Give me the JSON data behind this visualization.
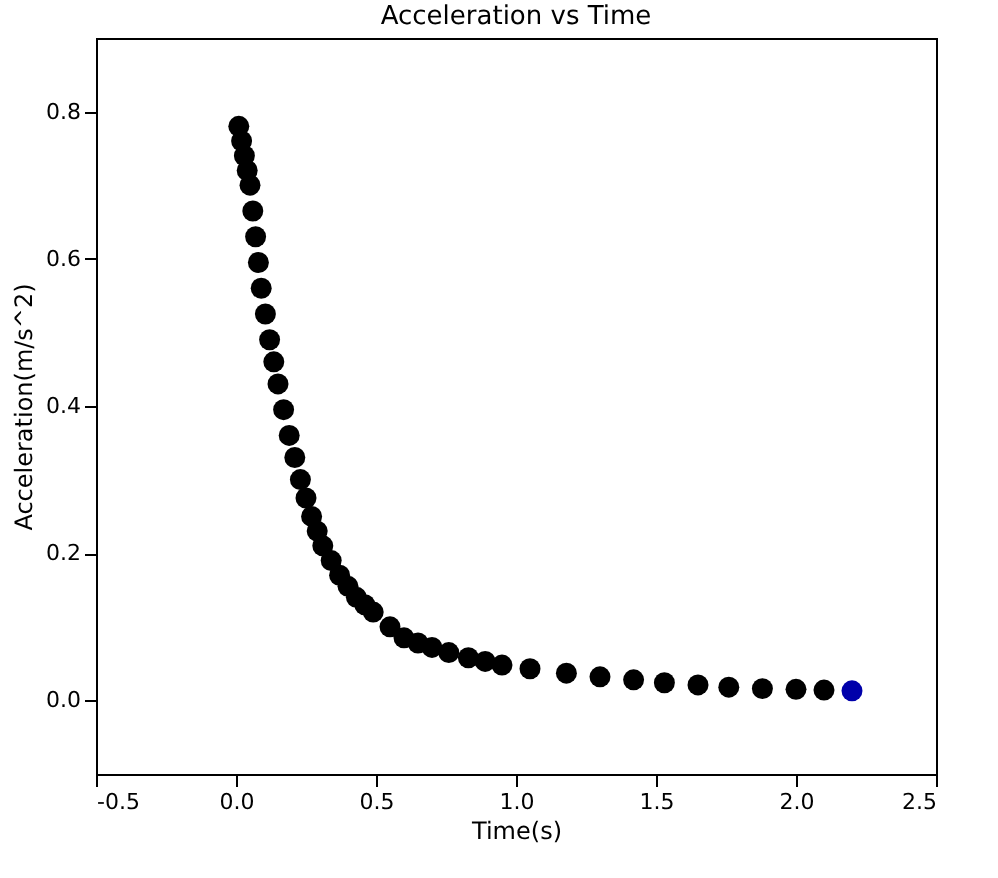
{
  "chart_data": {
    "type": "scatter",
    "title": "Acceleration vs Time",
    "xlabel": "Time(s)",
    "ylabel": "Acceleration(m/s^2)",
    "x": [
      0.01,
      0.02,
      0.03,
      0.04,
      0.05,
      0.06,
      0.07,
      0.08,
      0.09,
      0.105,
      0.12,
      0.135,
      0.15,
      0.17,
      0.19,
      0.21,
      0.23,
      0.25,
      0.27,
      0.29,
      0.31,
      0.34,
      0.37,
      0.4,
      0.43,
      0.46,
      0.49,
      0.55,
      0.6,
      0.65,
      0.7,
      0.76,
      0.83,
      0.89,
      0.95,
      1.05,
      1.18,
      1.3,
      1.42,
      1.53,
      1.65,
      1.76,
      1.88,
      2.0,
      2.1,
      2.2
    ],
    "values": [
      0.78,
      0.76,
      0.74,
      0.72,
      0.7,
      0.665,
      0.63,
      0.595,
      0.56,
      0.525,
      0.49,
      0.46,
      0.43,
      0.395,
      0.36,
      0.33,
      0.3,
      0.275,
      0.25,
      0.23,
      0.21,
      0.19,
      0.17,
      0.155,
      0.14,
      0.13,
      0.12,
      0.1,
      0.085,
      0.078,
      0.072,
      0.065,
      0.058,
      0.053,
      0.048,
      0.043,
      0.037,
      0.032,
      0.028,
      0.024,
      0.021,
      0.018,
      0.016,
      0.015,
      0.014,
      0.013
    ],
    "colors": [
      "#000000",
      "#000000",
      "#000000",
      "#000000",
      "#000000",
      "#000000",
      "#000000",
      "#000000",
      "#000000",
      "#000000",
      "#000000",
      "#000000",
      "#000000",
      "#000000",
      "#000000",
      "#000000",
      "#000000",
      "#000000",
      "#000000",
      "#000000",
      "#000000",
      "#000000",
      "#000000",
      "#000000",
      "#000000",
      "#000000",
      "#000000",
      "#000000",
      "#000000",
      "#000000",
      "#000000",
      "#000000",
      "#000000",
      "#000000",
      "#000000",
      "#000000",
      "#000000",
      "#000000",
      "#000000",
      "#000000",
      "#000000",
      "#000000",
      "#000000",
      "#000000",
      "#000000",
      "#0000aa"
    ],
    "marker": "circle",
    "xlim": [
      -0.5,
      2.5
    ],
    "xticks": [
      -0.5,
      {
        "value": 0,
        "label": "0.0"
      },
      0.5,
      {
        "value": 1,
        "label": "1.0"
      },
      1.5,
      {
        "value": 2,
        "label": "2.0"
      },
      2.5
    ],
    "ylim": [
      -0.1,
      0.9
    ],
    "yticks": [
      {
        "value": 0,
        "label": "0.0"
      },
      0.2,
      0.4,
      0.6,
      0.8
    ],
    "grid": false
  }
}
